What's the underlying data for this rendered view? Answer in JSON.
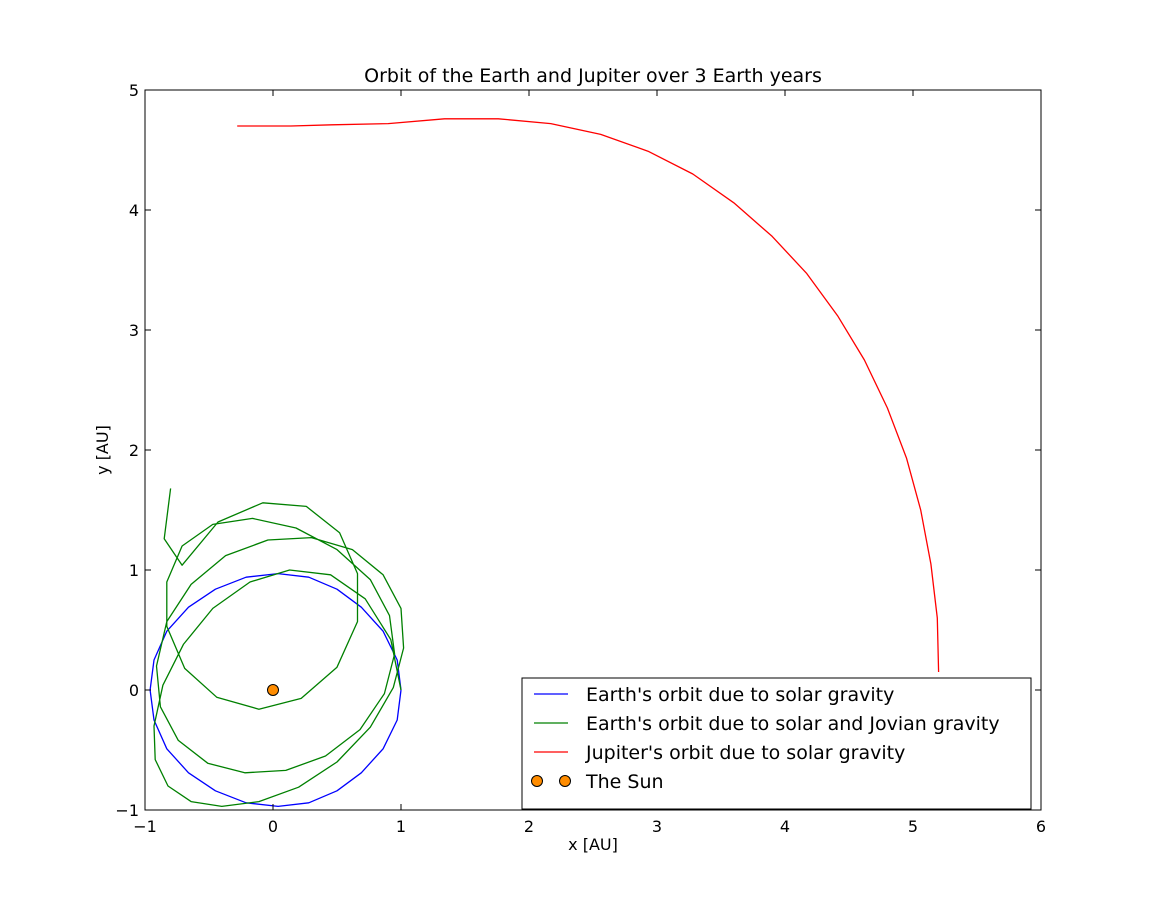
{
  "chart_data": {
    "type": "line",
    "title": "Orbit of the Earth and Jupiter over 3 Earth years",
    "xlabel": "x [AU]",
    "ylabel": "y [AU]",
    "xlim": [
      -1,
      6
    ],
    "ylim": [
      -1,
      5
    ],
    "xticks": [
      -1,
      0,
      1,
      2,
      3,
      4,
      5,
      6
    ],
    "yticks": [
      -1,
      0,
      1,
      2,
      3,
      4,
      5
    ],
    "grid": false,
    "legend_position": "lower-right",
    "series": [
      {
        "name": "Earth's orbit due to solar gravity",
        "color": "#0000ff",
        "kind": "line",
        "x": [
          1.0,
          0.97,
          0.86,
          0.69,
          0.5,
          0.28,
          0.04,
          -0.21,
          -0.45,
          -0.66,
          -0.83,
          -0.93,
          -0.96,
          -0.93,
          -0.83,
          -0.66,
          -0.45,
          -0.21,
          0.04,
          0.28,
          0.5,
          0.69,
          0.86,
          0.97,
          1.0
        ],
        "y": [
          0.0,
          0.25,
          0.49,
          0.69,
          0.84,
          0.94,
          0.97,
          0.94,
          0.84,
          0.69,
          0.49,
          0.25,
          0.0,
          -0.25,
          -0.49,
          -0.69,
          -0.84,
          -0.94,
          -0.97,
          -0.94,
          -0.84,
          -0.69,
          -0.49,
          -0.25,
          0.0
        ]
      },
      {
        "name": "Earth's orbit due to solar and Jovian gravity",
        "color": "#008000",
        "kind": "line",
        "x": [
          1.0,
          0.92,
          0.72,
          0.45,
          0.13,
          -0.18,
          -0.47,
          -0.7,
          -0.86,
          -0.93,
          -0.92,
          -0.82,
          -0.64,
          -0.4,
          -0.11,
          0.2,
          0.5,
          0.76,
          0.94,
          1.02,
          1.0,
          0.86,
          0.62,
          0.3,
          -0.04,
          -0.37,
          -0.64,
          -0.83,
          -0.91,
          -0.88,
          -0.74,
          -0.51,
          -0.22,
          0.1,
          0.41,
          0.68,
          0.87,
          0.95,
          0.91,
          0.76,
          0.5,
          0.18,
          -0.16,
          -0.47,
          -0.71,
          -0.83,
          -0.83,
          -0.69,
          -0.44,
          -0.11,
          0.22,
          0.5,
          0.66,
          0.66,
          0.52,
          0.26,
          -0.08,
          -0.43,
          -0.71,
          -0.85,
          -0.8
        ],
        "y": [
          0.0,
          0.42,
          0.76,
          0.96,
          1.0,
          0.9,
          0.68,
          0.38,
          0.04,
          -0.3,
          -0.58,
          -0.8,
          -0.93,
          -0.97,
          -0.93,
          -0.81,
          -0.6,
          -0.31,
          0.02,
          0.35,
          0.68,
          0.96,
          1.17,
          1.27,
          1.25,
          1.12,
          0.88,
          0.57,
          0.2,
          -0.14,
          -0.42,
          -0.61,
          -0.69,
          -0.67,
          -0.55,
          -0.33,
          -0.03,
          0.3,
          0.62,
          0.92,
          1.17,
          1.35,
          1.43,
          1.38,
          1.2,
          0.9,
          0.53,
          0.18,
          -0.06,
          -0.16,
          -0.07,
          0.19,
          0.57,
          0.97,
          1.31,
          1.53,
          1.56,
          1.4,
          1.04,
          1.26,
          1.68
        ]
      },
      {
        "name": "Jupiter's orbit due to solar gravity",
        "color": "#ff0000",
        "kind": "line",
        "x": [
          5.2,
          5.19,
          5.14,
          5.06,
          4.95,
          4.8,
          4.62,
          4.41,
          4.17,
          3.9,
          3.6,
          3.28,
          2.93,
          2.56,
          2.17,
          1.76,
          1.34,
          0.9,
          0.46,
          0.14,
          -0.28
        ],
        "y": [
          0.15,
          0.6,
          1.05,
          1.5,
          1.93,
          2.35,
          2.75,
          3.12,
          3.47,
          3.78,
          4.06,
          4.3,
          4.49,
          4.63,
          4.72,
          4.76,
          4.76,
          4.72,
          4.71,
          4.7,
          4.7
        ]
      },
      {
        "name": "The Sun",
        "color": "#ff8c00",
        "kind": "marker",
        "x": [
          0.0
        ],
        "y": [
          0.0
        ]
      }
    ]
  }
}
